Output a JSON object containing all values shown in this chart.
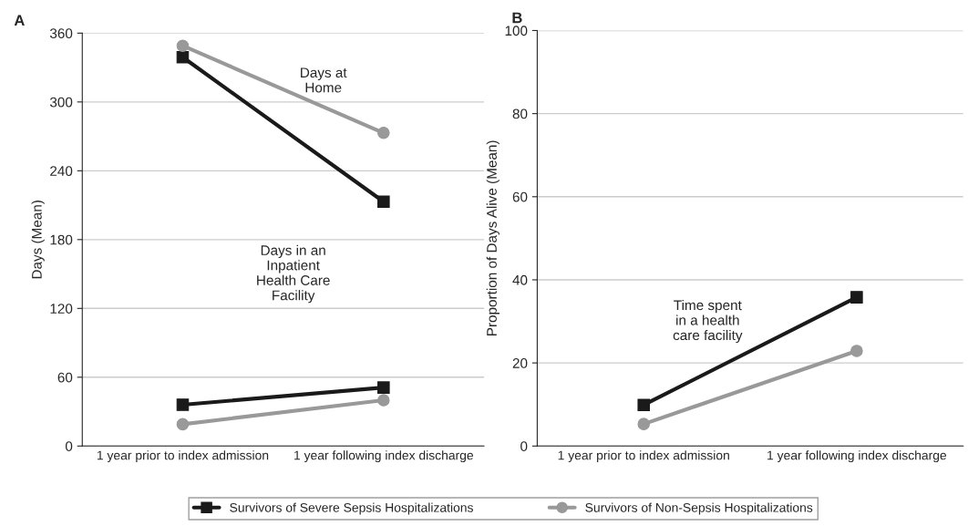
{
  "chart_data": [
    {
      "type": "line",
      "title": "A",
      "ylabel": "Days (Mean)",
      "categories": [
        "1 year prior to index admission",
        "1 year following index discharge"
      ],
      "series": [
        {
          "name": "Survivors of Severe Sepsis Hospitalizations",
          "color": "#1a1a1a",
          "marker": "square",
          "values": [
            339,
            213
          ]
        },
        {
          "name": "Survivors of Non-Sepsis Hospitalizations",
          "color": "#999999",
          "marker": "circle",
          "values": [
            349,
            273
          ]
        },
        {
          "color": "#999999",
          "marker": "circle",
          "values": [
            19,
            40
          ]
        },
        {
          "color": "#1a1a1a",
          "marker": "square",
          "values": [
            36,
            51
          ]
        }
      ],
      "annotations": [
        "Days at\nHome",
        "Days in an\nInpatient\nHealth Care\nFacility"
      ],
      "ylim": [
        0,
        360
      ],
      "yticks": [
        0,
        60,
        120,
        180,
        240,
        300,
        360
      ],
      "grid": "y",
      "legend": "bottom",
      "line_style": "solid"
    },
    {
      "type": "line",
      "title": "B",
      "ylabel": "Proportion of Days Alive (Mean)",
      "categories": [
        "1 year prior to index admission",
        "1 year following index discharge"
      ],
      "series": [
        {
          "color": "#999999",
          "marker": "circle",
          "values": [
            5.3,
            22.9
          ]
        },
        {
          "color": "#1a1a1a",
          "marker": "square",
          "values": [
            9.9,
            35.8
          ]
        }
      ],
      "annotations": [
        "Time spent\nin a health\ncare facility"
      ],
      "ylim": [
        0,
        100
      ],
      "yticks": [
        0,
        20,
        40,
        60,
        80,
        100
      ],
      "grid": "y",
      "line_style": "solid"
    }
  ]
}
